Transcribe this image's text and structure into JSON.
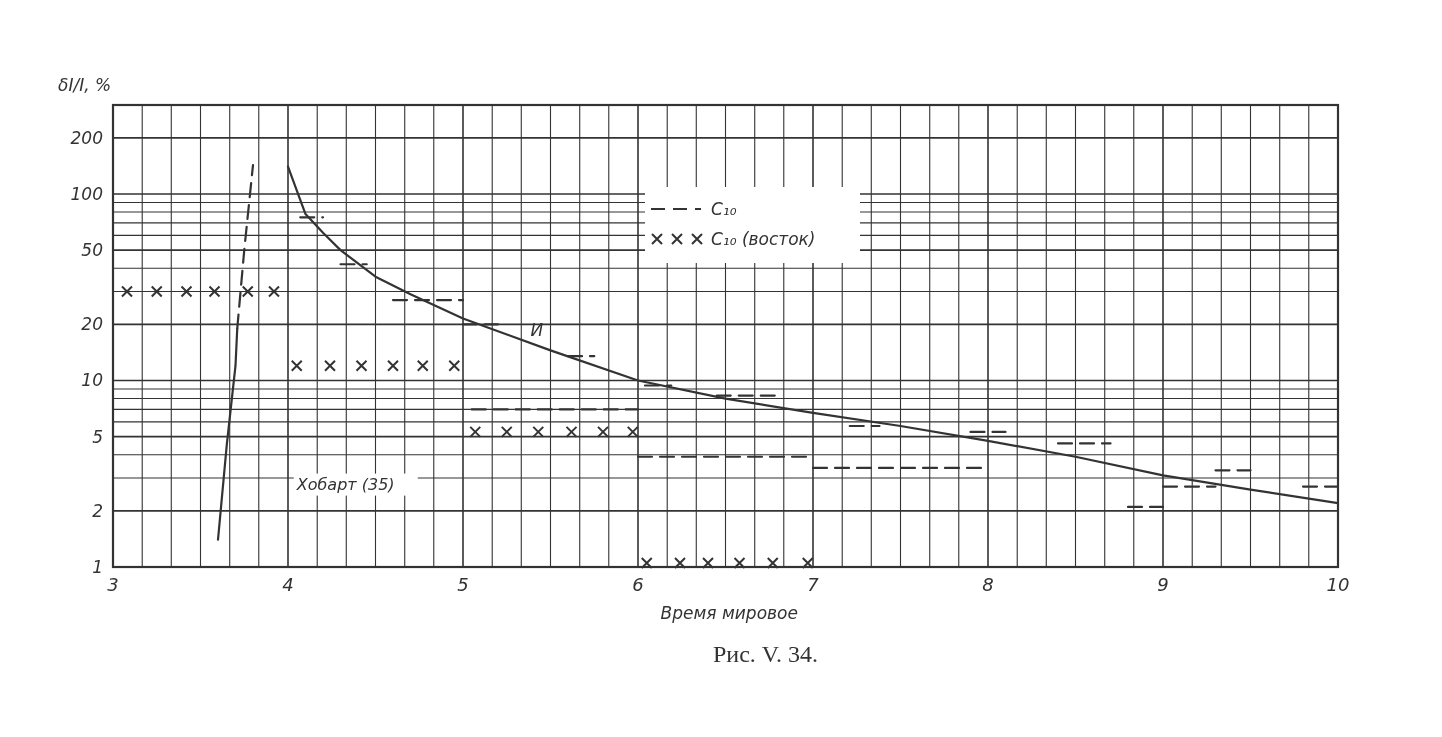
{
  "chart_data": {
    "type": "line",
    "xlabel": "Время мировое",
    "ylabel": "δI/I, %",
    "annotations": [
      "Хобарт (35)",
      "Рис. V. 34."
    ],
    "log": "y",
    "grid": true,
    "legend": "top",
    "xlim": [
      3,
      10
    ],
    "ylim": [
      1,
      300
    ],
    "xticks": [
      3,
      {
        "value": 3.167,
        "label": null
      },
      {
        "value": 3.333,
        "label": null
      },
      {
        "value": 3.5,
        "label": null
      },
      {
        "value": 3.667,
        "label": null
      },
      {
        "value": 3.833,
        "label": null
      },
      4,
      {
        "value": 4.167,
        "label": null
      },
      {
        "value": 4.333,
        "label": null
      },
      {
        "value": 4.5,
        "label": null
      },
      {
        "value": 4.667,
        "label": null
      },
      {
        "value": 4.833,
        "label": null
      },
      5,
      {
        "value": 5.167,
        "label": null
      },
      {
        "value": 5.333,
        "label": null
      },
      {
        "value": 5.5,
        "label": null
      },
      {
        "value": 5.667,
        "label": null
      },
      {
        "value": 5.833,
        "label": null
      },
      6,
      {
        "value": 6.167,
        "label": null
      },
      {
        "value": 6.333,
        "label": null
      },
      {
        "value": 6.5,
        "label": null
      },
      {
        "value": 6.667,
        "label": null
      },
      {
        "value": 6.833,
        "label": null
      },
      7,
      {
        "value": 7.167,
        "label": null
      },
      {
        "value": 7.333,
        "label": null
      },
      {
        "value": 7.5,
        "label": null
      },
      {
        "value": 7.667,
        "label": null
      },
      {
        "value": 7.833,
        "label": null
      },
      8,
      {
        "value": 8.167,
        "label": null
      },
      {
        "value": 8.333,
        "label": null
      },
      {
        "value": 8.5,
        "label": null
      },
      {
        "value": 8.667,
        "label": null
      },
      {
        "value": 8.833,
        "label": null
      },
      9,
      {
        "value": 9.167,
        "label": null
      },
      {
        "value": 9.333,
        "label": null
      },
      {
        "value": 9.5,
        "label": null
      },
      {
        "value": 9.667,
        "label": null
      },
      {
        "value": 9.833,
        "label": null
      },
      10
    ],
    "yticks": [
      1,
      2,
      {
        "value": 3,
        "label": null
      },
      {
        "value": 4,
        "label": null
      },
      5,
      {
        "value": 6,
        "label": null
      },
      {
        "value": 7,
        "label": null
      },
      {
        "value": 8,
        "label": null
      },
      {
        "value": 9,
        "label": null
      },
      10,
      20,
      {
        "value": 30,
        "label": null
      },
      {
        "value": 40,
        "label": null
      },
      50,
      {
        "value": 60,
        "label": null
      },
      {
        "value": 70,
        "label": null
      },
      {
        "value": 80,
        "label": null
      },
      {
        "value": 90,
        "label": null
      },
      100,
      200
    ],
    "series": [
      {
        "name": "И",
        "line_style": "solid",
        "color": "#333333",
        "x": [
          4,
          4.1,
          4.2,
          4.3,
          4.5,
          4.7,
          5,
          5.5,
          6,
          6.5,
          7,
          7.5,
          8,
          8.5,
          9,
          9.5,
          10
        ],
        "values": [
          140,
          78,
          62,
          50,
          36,
          29,
          21.5,
          14.5,
          10,
          8,
          6.7,
          5.7,
          4.75,
          3.9,
          3.1,
          2.6,
          2.2
        ]
      },
      {
        "line_style": "solid",
        "color": "#333333",
        "x": [
          3.6,
          3.65,
          3.7,
          3.71
        ],
        "values": [
          1.4,
          4.5,
          12,
          19
        ]
      },
      {
        "line_style": "dashed",
        "color": "#333333",
        "x": [
          3.71,
          3.75,
          3.8
        ],
        "values": [
          19,
          50,
          143
        ]
      },
      {
        "name": "C₁₀",
        "line_style": "dashed",
        "color": "#333333",
        "x": [
          4.07,
          4.2,
          null,
          4.3,
          4.45,
          null,
          4.6,
          5,
          null,
          5,
          5.2,
          null,
          5.05,
          6,
          null,
          5.6,
          5.75,
          null,
          6,
          7,
          null,
          6.04,
          6.19,
          null,
          6.45,
          6.82,
          null,
          7,
          8,
          null,
          7.21,
          7.38,
          null,
          7.9,
          8.1,
          null,
          8.4,
          8.7,
          null,
          8.8,
          9,
          null,
          9,
          9.3,
          null,
          9.3,
          9.5,
          null,
          9.8,
          10
        ],
        "values": [
          75,
          75,
          null,
          42,
          42,
          null,
          27,
          27,
          null,
          20,
          20,
          null,
          7,
          7,
          null,
          13.5,
          13.5,
          null,
          3.9,
          3.9,
          null,
          9.4,
          9.4,
          null,
          8.3,
          8.3,
          null,
          3.4,
          3.4,
          null,
          5.7,
          5.7,
          null,
          5.3,
          5.3,
          null,
          4.6,
          4.6,
          null,
          2.1,
          2.1,
          null,
          2.7,
          2.7,
          null,
          3.3,
          3.3,
          null,
          2.7,
          2.7
        ]
      },
      {
        "name": "C₁₀ (восток)",
        "type": "scatter",
        "marker": "cross",
        "color": "#333333",
        "x": [
          3.08,
          3.25,
          3.42,
          3.58,
          3.77,
          3.92,
          4.05,
          4.24,
          4.42,
          4.6,
          4.77,
          4.95,
          5.07,
          5.25,
          5.43,
          5.62,
          5.8,
          5.97,
          6.05,
          6.24,
          6.4,
          6.58,
          6.77,
          6.97
        ],
        "values": [
          30,
          30,
          30,
          30,
          30,
          30,
          12,
          12,
          12,
          12,
          12,
          12,
          5.3,
          5.3,
          5.3,
          5.3,
          5.3,
          5.3,
          1.05,
          1.05,
          1.05,
          1.05,
          1.05,
          1.05
        ]
      }
    ]
  }
}
